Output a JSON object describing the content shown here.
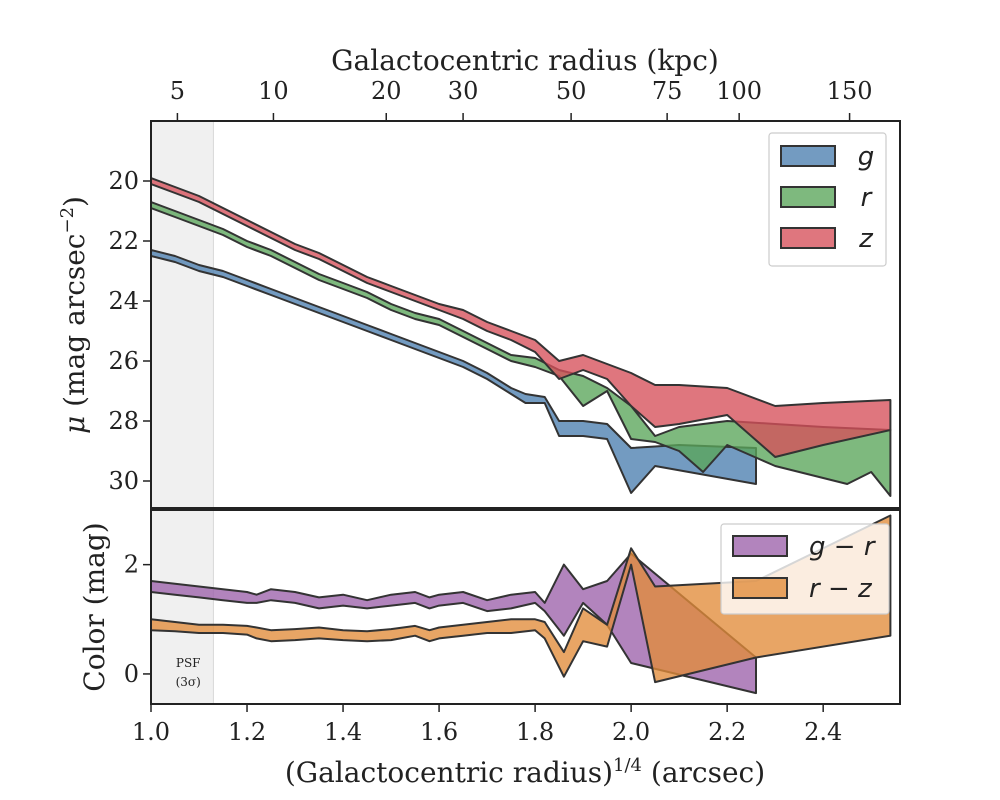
{
  "chart_data": [
    {
      "type": "area",
      "panel": "surface-brightness",
      "xlabel": "(Galactocentric radius)^1/4 (arcsec)",
      "top_xlabel": "Galactocentric radius (kpc)",
      "ylabel": "μ (mag arcsec⁻²)",
      "xlim": [
        1.0,
        2.56
      ],
      "ylim": [
        30.9,
        18.0
      ],
      "yticks": [
        20,
        22,
        24,
        26,
        28,
        30
      ],
      "top_ticks": [
        {
          "label": "5",
          "x": 1.055
        },
        {
          "label": "10",
          "x": 1.255
        },
        {
          "label": "20",
          "x": 1.49
        },
        {
          "label": "30",
          "x": 1.65
        },
        {
          "label": "50",
          "x": 1.875
        },
        {
          "label": "75",
          "x": 2.075
        },
        {
          "label": "100",
          "x": 2.225
        },
        {
          "label": "150",
          "x": 2.455
        }
      ],
      "legend": "top-right",
      "series": [
        {
          "name": "g",
          "color": "#4c7fb0",
          "upper": [
            [
              1.0,
              22.3
            ],
            [
              1.05,
              22.5
            ],
            [
              1.1,
              22.8
            ],
            [
              1.15,
              23.0
            ],
            [
              1.2,
              23.3
            ],
            [
              1.25,
              23.6
            ],
            [
              1.3,
              23.9
            ],
            [
              1.35,
              24.2
            ],
            [
              1.4,
              24.5
            ],
            [
              1.45,
              24.8
            ],
            [
              1.5,
              25.1
            ],
            [
              1.55,
              25.4
            ],
            [
              1.6,
              25.7
            ],
            [
              1.65,
              26.0
            ],
            [
              1.7,
              26.4
            ],
            [
              1.75,
              26.9
            ],
            [
              1.78,
              27.1
            ],
            [
              1.82,
              27.2
            ],
            [
              1.85,
              28.0
            ],
            [
              1.9,
              28.0
            ],
            [
              1.95,
              28.1
            ],
            [
              2.0,
              28.9
            ],
            [
              2.1,
              28.8
            ],
            [
              2.26,
              28.9
            ]
          ],
          "lower": [
            [
              1.0,
              22.5
            ],
            [
              1.05,
              22.7
            ],
            [
              1.1,
              23.0
            ],
            [
              1.15,
              23.2
            ],
            [
              1.2,
              23.5
            ],
            [
              1.25,
              23.8
            ],
            [
              1.3,
              24.1
            ],
            [
              1.35,
              24.4
            ],
            [
              1.4,
              24.7
            ],
            [
              1.45,
              25.0
            ],
            [
              1.5,
              25.3
            ],
            [
              1.55,
              25.6
            ],
            [
              1.6,
              25.9
            ],
            [
              1.65,
              26.2
            ],
            [
              1.7,
              26.6
            ],
            [
              1.75,
              27.1
            ],
            [
              1.78,
              27.4
            ],
            [
              1.82,
              27.4
            ],
            [
              1.85,
              28.5
            ],
            [
              1.9,
              28.5
            ],
            [
              1.95,
              28.6
            ],
            [
              2.0,
              30.4
            ],
            [
              2.05,
              29.5
            ],
            [
              2.26,
              30.1
            ]
          ]
        },
        {
          "name": "r",
          "color": "#5aa55a",
          "upper": [
            [
              1.0,
              20.7
            ],
            [
              1.05,
              21.0
            ],
            [
              1.1,
              21.3
            ],
            [
              1.15,
              21.6
            ],
            [
              1.2,
              22.0
            ],
            [
              1.25,
              22.3
            ],
            [
              1.3,
              22.7
            ],
            [
              1.35,
              23.1
            ],
            [
              1.4,
              23.4
            ],
            [
              1.45,
              23.7
            ],
            [
              1.5,
              24.1
            ],
            [
              1.55,
              24.4
            ],
            [
              1.6,
              24.6
            ],
            [
              1.65,
              25.0
            ],
            [
              1.7,
              25.4
            ],
            [
              1.75,
              25.8
            ],
            [
              1.8,
              25.9
            ],
            [
              1.85,
              26.3
            ],
            [
              1.9,
              26.5
            ],
            [
              1.95,
              26.9
            ],
            [
              2.0,
              27.5
            ],
            [
              2.05,
              28.5
            ],
            [
              2.1,
              28.2
            ],
            [
              2.2,
              28.0
            ],
            [
              2.3,
              28.1
            ],
            [
              2.4,
              28.2
            ],
            [
              2.54,
              28.3
            ]
          ],
          "lower": [
            [
              1.0,
              20.9
            ],
            [
              1.05,
              21.2
            ],
            [
              1.1,
              21.5
            ],
            [
              1.15,
              21.8
            ],
            [
              1.2,
              22.2
            ],
            [
              1.25,
              22.5
            ],
            [
              1.3,
              22.9
            ],
            [
              1.35,
              23.3
            ],
            [
              1.4,
              23.6
            ],
            [
              1.45,
              23.9
            ],
            [
              1.5,
              24.3
            ],
            [
              1.55,
              24.6
            ],
            [
              1.6,
              24.8
            ],
            [
              1.65,
              25.2
            ],
            [
              1.7,
              25.6
            ],
            [
              1.75,
              26.0
            ],
            [
              1.8,
              26.2
            ],
            [
              1.85,
              26.5
            ],
            [
              1.9,
              27.5
            ],
            [
              1.95,
              27.0
            ],
            [
              2.0,
              28.6
            ],
            [
              2.05,
              28.7
            ],
            [
              2.1,
              29.0
            ],
            [
              2.15,
              29.7
            ],
            [
              2.2,
              28.8
            ],
            [
              2.3,
              29.5
            ],
            [
              2.45,
              30.1
            ],
            [
              2.5,
              29.7
            ],
            [
              2.54,
              30.5
            ]
          ]
        },
        {
          "name": "z",
          "color": "#d6505a",
          "upper": [
            [
              1.0,
              19.9
            ],
            [
              1.05,
              20.2
            ],
            [
              1.1,
              20.5
            ],
            [
              1.15,
              20.9
            ],
            [
              1.2,
              21.3
            ],
            [
              1.25,
              21.7
            ],
            [
              1.3,
              22.1
            ],
            [
              1.35,
              22.4
            ],
            [
              1.4,
              22.8
            ],
            [
              1.45,
              23.2
            ],
            [
              1.5,
              23.5
            ],
            [
              1.55,
              23.8
            ],
            [
              1.6,
              24.1
            ],
            [
              1.65,
              24.3
            ],
            [
              1.7,
              24.7
            ],
            [
              1.75,
              25.0
            ],
            [
              1.8,
              25.3
            ],
            [
              1.85,
              26.0
            ],
            [
              1.9,
              25.8
            ],
            [
              1.95,
              26.1
            ],
            [
              2.0,
              26.4
            ],
            [
              2.05,
              26.8
            ],
            [
              2.1,
              26.8
            ],
            [
              2.2,
              26.9
            ],
            [
              2.3,
              27.5
            ],
            [
              2.4,
              27.4
            ],
            [
              2.54,
              27.3
            ]
          ],
          "lower": [
            [
              1.0,
              20.1
            ],
            [
              1.05,
              20.4
            ],
            [
              1.1,
              20.7
            ],
            [
              1.15,
              21.1
            ],
            [
              1.2,
              21.5
            ],
            [
              1.25,
              21.9
            ],
            [
              1.3,
              22.3
            ],
            [
              1.35,
              22.6
            ],
            [
              1.4,
              23.0
            ],
            [
              1.45,
              23.4
            ],
            [
              1.5,
              23.7
            ],
            [
              1.55,
              24.0
            ],
            [
              1.6,
              24.3
            ],
            [
              1.65,
              24.6
            ],
            [
              1.7,
              25.0
            ],
            [
              1.75,
              25.3
            ],
            [
              1.8,
              25.7
            ],
            [
              1.85,
              26.6
            ],
            [
              1.9,
              26.3
            ],
            [
              1.95,
              26.6
            ],
            [
              2.0,
              27.5
            ],
            [
              2.05,
              28.2
            ],
            [
              2.1,
              28.1
            ],
            [
              2.2,
              27.8
            ],
            [
              2.3,
              29.2
            ],
            [
              2.4,
              28.8
            ],
            [
              2.54,
              28.3
            ]
          ]
        }
      ]
    },
    {
      "type": "area",
      "panel": "color",
      "xlabel": "(Galactocentric radius)^1/4 (arcsec)",
      "ylabel": "Color (mag)",
      "xlim": [
        1.0,
        2.56
      ],
      "ylim": [
        -0.55,
        3.0
      ],
      "yticks": [
        0,
        2
      ],
      "xticks": [
        1.0,
        1.2,
        1.4,
        1.6,
        1.8,
        2.0,
        2.2,
        2.4
      ],
      "legend": "top-right",
      "annotation": {
        "line1": "PSF",
        "line2": "(3σ)"
      },
      "psf_limit_x": 1.13,
      "series": [
        {
          "name": "g − r",
          "color": "#9c62aa",
          "upper": [
            [
              1.0,
              1.7
            ],
            [
              1.05,
              1.65
            ],
            [
              1.1,
              1.6
            ],
            [
              1.15,
              1.55
            ],
            [
              1.2,
              1.5
            ],
            [
              1.22,
              1.45
            ],
            [
              1.25,
              1.55
            ],
            [
              1.3,
              1.5
            ],
            [
              1.35,
              1.4
            ],
            [
              1.4,
              1.45
            ],
            [
              1.45,
              1.35
            ],
            [
              1.5,
              1.45
            ],
            [
              1.55,
              1.5
            ],
            [
              1.58,
              1.4
            ],
            [
              1.6,
              1.45
            ],
            [
              1.65,
              1.5
            ],
            [
              1.7,
              1.35
            ],
            [
              1.75,
              1.45
            ],
            [
              1.8,
              1.5
            ],
            [
              1.82,
              1.3
            ],
            [
              1.86,
              2.0
            ],
            [
              1.9,
              1.55
            ],
            [
              1.95,
              1.7
            ],
            [
              2.0,
              2.2
            ],
            [
              2.26,
              0.3
            ]
          ],
          "lower": [
            [
              1.0,
              1.5
            ],
            [
              1.05,
              1.45
            ],
            [
              1.1,
              1.4
            ],
            [
              1.15,
              1.35
            ],
            [
              1.2,
              1.3
            ],
            [
              1.22,
              1.3
            ],
            [
              1.25,
              1.35
            ],
            [
              1.3,
              1.3
            ],
            [
              1.35,
              1.2
            ],
            [
              1.4,
              1.25
            ],
            [
              1.45,
              1.2
            ],
            [
              1.5,
              1.25
            ],
            [
              1.55,
              1.3
            ],
            [
              1.58,
              1.2
            ],
            [
              1.6,
              1.25
            ],
            [
              1.65,
              1.3
            ],
            [
              1.7,
              1.15
            ],
            [
              1.75,
              1.2
            ],
            [
              1.8,
              1.3
            ],
            [
              1.82,
              1.15
            ],
            [
              1.86,
              0.7
            ],
            [
              1.9,
              1.3
            ],
            [
              1.95,
              0.9
            ],
            [
              2.0,
              0.2
            ],
            [
              2.26,
              -0.35
            ]
          ]
        },
        {
          "name": "r − z",
          "color": "#e28c3a",
          "upper": [
            [
              1.0,
              1.0
            ],
            [
              1.05,
              0.95
            ],
            [
              1.1,
              0.9
            ],
            [
              1.15,
              0.9
            ],
            [
              1.2,
              0.88
            ],
            [
              1.22,
              0.85
            ],
            [
              1.25,
              0.8
            ],
            [
              1.3,
              0.82
            ],
            [
              1.35,
              0.85
            ],
            [
              1.4,
              0.8
            ],
            [
              1.45,
              0.78
            ],
            [
              1.5,
              0.82
            ],
            [
              1.55,
              0.88
            ],
            [
              1.58,
              0.8
            ],
            [
              1.6,
              0.85
            ],
            [
              1.65,
              0.9
            ],
            [
              1.7,
              0.95
            ],
            [
              1.75,
              1.0
            ],
            [
              1.8,
              1.0
            ],
            [
              1.82,
              0.95
            ],
            [
              1.86,
              0.4
            ],
            [
              1.9,
              1.2
            ],
            [
              1.95,
              0.9
            ],
            [
              2.0,
              2.3
            ],
            [
              2.05,
              1.6
            ],
            [
              2.26,
              1.7
            ],
            [
              2.54,
              2.9
            ]
          ],
          "lower": [
            [
              1.0,
              0.8
            ],
            [
              1.05,
              0.78
            ],
            [
              1.1,
              0.75
            ],
            [
              1.15,
              0.75
            ],
            [
              1.2,
              0.72
            ],
            [
              1.22,
              0.65
            ],
            [
              1.25,
              0.6
            ],
            [
              1.3,
              0.62
            ],
            [
              1.35,
              0.65
            ],
            [
              1.4,
              0.62
            ],
            [
              1.45,
              0.6
            ],
            [
              1.5,
              0.62
            ],
            [
              1.55,
              0.7
            ],
            [
              1.58,
              0.6
            ],
            [
              1.6,
              0.65
            ],
            [
              1.65,
              0.7
            ],
            [
              1.7,
              0.75
            ],
            [
              1.75,
              0.75
            ],
            [
              1.8,
              0.8
            ],
            [
              1.82,
              0.65
            ],
            [
              1.86,
              -0.05
            ],
            [
              1.9,
              0.6
            ],
            [
              1.95,
              0.5
            ],
            [
              2.0,
              2.0
            ],
            [
              2.05,
              -0.15
            ],
            [
              2.26,
              0.3
            ],
            [
              2.54,
              0.7
            ]
          ]
        }
      ]
    }
  ]
}
